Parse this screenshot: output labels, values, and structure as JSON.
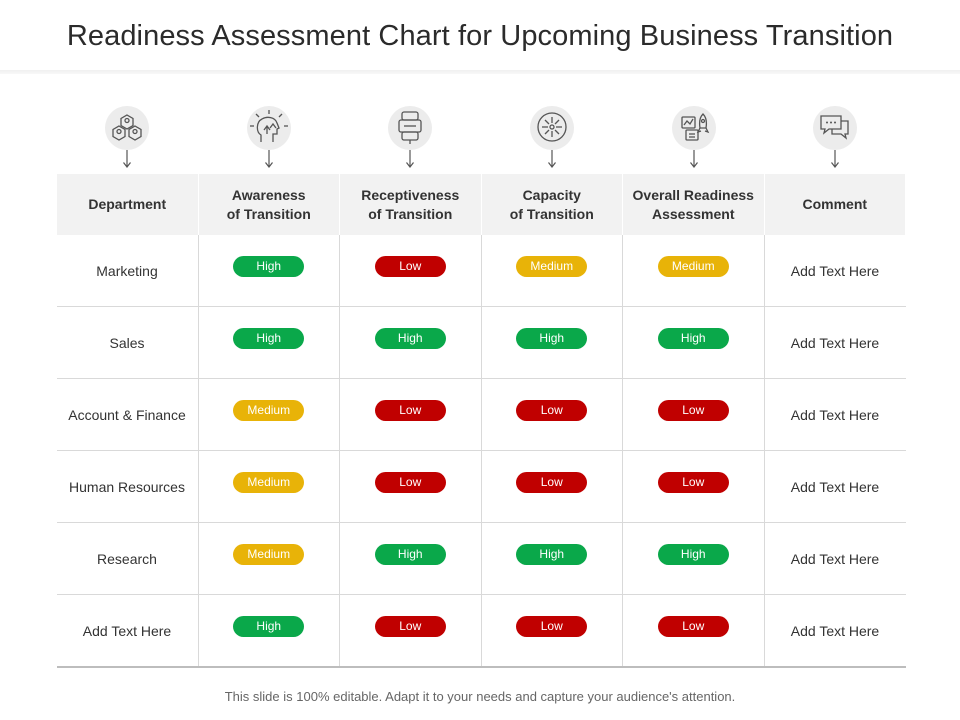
{
  "title": "Readiness Assessment Chart for Upcoming Business Transition",
  "footer": "This slide is 100% editable. Adapt it to your needs and capture your audience's attention.",
  "colors": {
    "High": "#0aa84a",
    "Low": "#c00000",
    "Medium": "#e8b308"
  },
  "icons": [
    "department-icon",
    "awareness-icon",
    "receptiveness-icon",
    "capacity-icon",
    "readiness-icon",
    "comment-icon"
  ],
  "headers": [
    [
      "Department"
    ],
    [
      "Awareness",
      "of Transition"
    ],
    [
      "Receptiveness",
      "of Transition"
    ],
    [
      "Capacity",
      "of Transition"
    ],
    [
      "Overall Readiness",
      "Assessment"
    ],
    [
      "Comment"
    ]
  ],
  "rows": [
    {
      "department": "Marketing",
      "awareness": "High",
      "receptiveness": "Low",
      "capacity": "Medium",
      "overall": "Medium",
      "comment": "Add Text Here"
    },
    {
      "department": "Sales",
      "awareness": "High",
      "receptiveness": "High",
      "capacity": "High",
      "overall": "High",
      "comment": "Add Text Here"
    },
    {
      "department": "Account & Finance",
      "awareness": "Medium",
      "receptiveness": "Low",
      "capacity": "Low",
      "overall": "Low",
      "comment": "Add Text Here"
    },
    {
      "department": "Human Resources",
      "awareness": "Medium",
      "receptiveness": "Low",
      "capacity": "Low",
      "overall": "Low",
      "comment": "Add Text Here"
    },
    {
      "department": "Research",
      "awareness": "Medium",
      "receptiveness": "High",
      "capacity": "High",
      "overall": "High",
      "comment": "Add Text Here"
    },
    {
      "department": "Add Text Here",
      "awareness": "High",
      "receptiveness": "Low",
      "capacity": "Low",
      "overall": "Low",
      "comment": "Add Text Here"
    }
  ]
}
